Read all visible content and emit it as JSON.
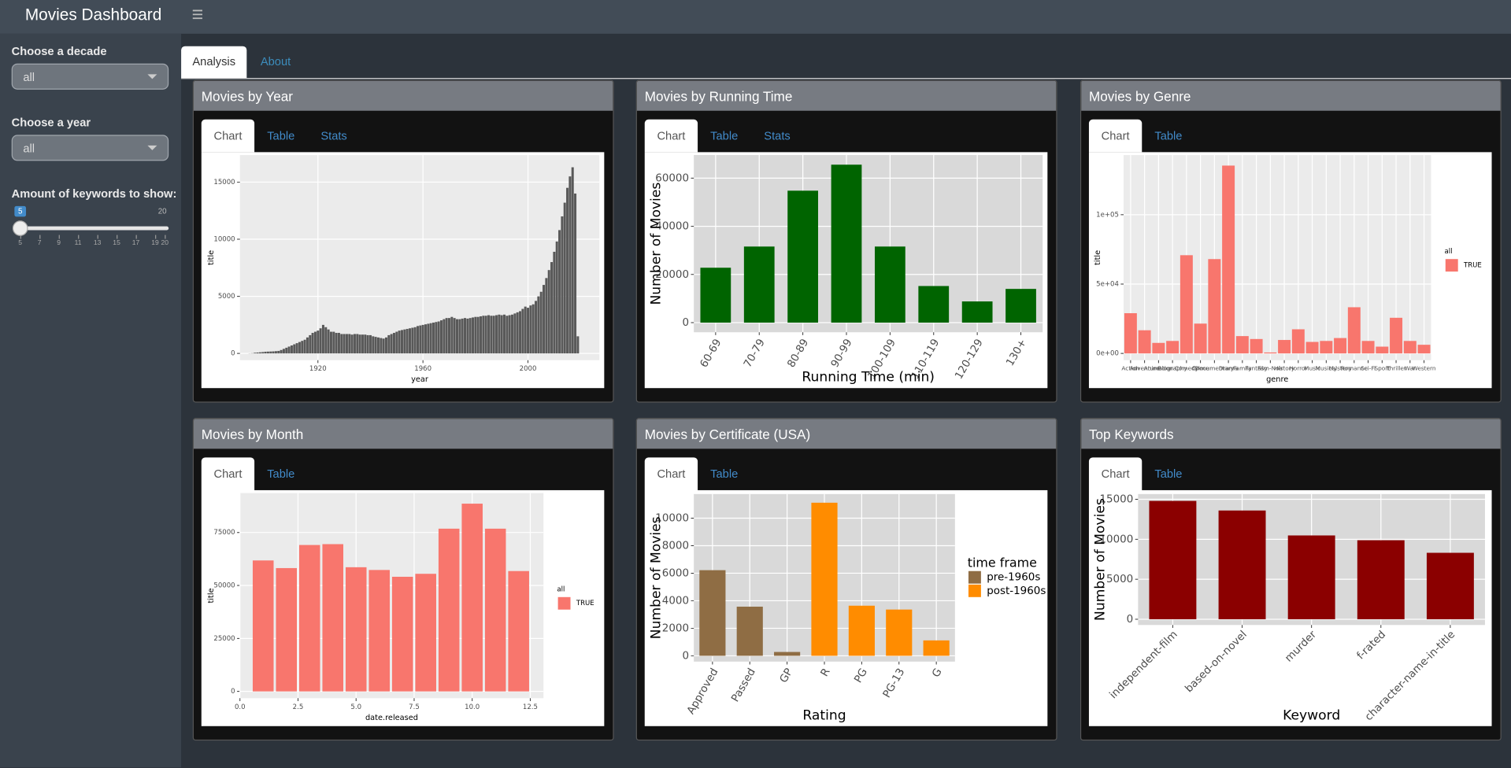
{
  "header": {
    "title": "Movies Dashboard"
  },
  "sidebar": {
    "decade": {
      "label": "Choose a decade",
      "value": "all"
    },
    "year": {
      "label": "Choose a year",
      "value": "all"
    },
    "keywords": {
      "label": "Amount of keywords to show:",
      "min": 5,
      "max": 20,
      "value": 5,
      "ticks": [
        5,
        7,
        9,
        11,
        13,
        15,
        17,
        19,
        20
      ]
    }
  },
  "main_tabs": [
    "Analysis",
    "About"
  ],
  "panels": [
    {
      "title": "Movies by Year",
      "tabs": [
        "Chart",
        "Table",
        "Stats"
      ]
    },
    {
      "title": "Movies by Running Time",
      "tabs": [
        "Chart",
        "Table",
        "Stats"
      ]
    },
    {
      "title": "Movies by Genre",
      "tabs": [
        "Chart",
        "Table"
      ]
    },
    {
      "title": "Movies by Month",
      "tabs": [
        "Chart",
        "Table"
      ]
    },
    {
      "title": "Movies by Certificate (USA)",
      "tabs": [
        "Chart",
        "Table"
      ]
    },
    {
      "title": "Top Keywords",
      "tabs": [
        "Chart",
        "Table"
      ]
    }
  ],
  "chart_data": [
    {
      "type": "bar",
      "xlabel": "year",
      "ylabel": "title",
      "color": "#595959",
      "grid": true,
      "x": [
        1894,
        1895,
        1896,
        1897,
        1898,
        1899,
        1900,
        1901,
        1902,
        1903,
        1904,
        1905,
        1906,
        1907,
        1908,
        1909,
        1910,
        1911,
        1912,
        1913,
        1914,
        1915,
        1916,
        1917,
        1918,
        1919,
        1920,
        1921,
        1922,
        1923,
        1924,
        1925,
        1926,
        1927,
        1928,
        1929,
        1930,
        1931,
        1932,
        1933,
        1934,
        1935,
        1936,
        1937,
        1938,
        1939,
        1940,
        1941,
        1942,
        1943,
        1944,
        1945,
        1946,
        1947,
        1948,
        1949,
        1950,
        1951,
        1952,
        1953,
        1954,
        1955,
        1956,
        1957,
        1958,
        1959,
        1960,
        1961,
        1962,
        1963,
        1964,
        1965,
        1966,
        1967,
        1968,
        1969,
        1970,
        1971,
        1972,
        1973,
        1974,
        1975,
        1976,
        1977,
        1978,
        1979,
        1980,
        1981,
        1982,
        1983,
        1984,
        1985,
        1986,
        1987,
        1988,
        1989,
        1990,
        1991,
        1992,
        1993,
        1994,
        1995,
        1996,
        1997,
        1998,
        1999,
        2000,
        2001,
        2002,
        2003,
        2004,
        2005,
        2006,
        2007,
        2008,
        2009,
        2010,
        2011,
        2012,
        2013,
        2014,
        2015,
        2016,
        2017,
        2018,
        2019
      ],
      "values": [
        10,
        20,
        60,
        80,
        100,
        120,
        150,
        160,
        170,
        180,
        200,
        220,
        300,
        400,
        500,
        600,
        700,
        800,
        900,
        1000,
        1100,
        1200,
        1400,
        1600,
        1800,
        1900,
        2000,
        2200,
        2500,
        2300,
        2100,
        1900,
        1900,
        1800,
        1800,
        1700,
        1700,
        1700,
        1700,
        1650,
        1700,
        1700,
        1650,
        1650,
        1650,
        1600,
        1600,
        1500,
        1450,
        1400,
        1350,
        1300,
        1400,
        1600,
        1700,
        1800,
        1900,
        2000,
        2050,
        2100,
        2150,
        2200,
        2250,
        2300,
        2400,
        2450,
        2500,
        2550,
        2600,
        2650,
        2700,
        2750,
        2800,
        2900,
        3000,
        3100,
        3100,
        3200,
        3100,
        3000,
        3000,
        3050,
        3100,
        3050,
        3100,
        3150,
        3200,
        3200,
        3250,
        3300,
        3300,
        3350,
        3300,
        3300,
        3350,
        3400,
        3350,
        3400,
        3300,
        3350,
        3400,
        3500,
        3600,
        3700,
        3900,
        4100,
        4000,
        4200,
        4300,
        4600,
        5000,
        5400,
        6000,
        6600,
        7300,
        8000,
        8900,
        9800,
        10800,
        12000,
        13200,
        14500,
        15500,
        16300,
        14000,
        1500
      ],
      "xlim": [
        1890.3,
        2027.2
      ],
      "xticks": [
        1920,
        1960,
        2000
      ],
      "ylim": [
        -590,
        17370
      ],
      "yticks": [
        0,
        5000,
        10000,
        15000
      ]
    },
    {
      "type": "bar",
      "xlabel": "Running Time (min)",
      "ylabel": "Number of Movies",
      "color": "#006400",
      "grid": true,
      "categories": [
        "60-69",
        "70-79",
        "80-89",
        "90-99",
        "100-109",
        "110-119",
        "120-129",
        "130+"
      ],
      "values": [
        22800,
        31600,
        54800,
        65600,
        31600,
        15200,
        8800,
        14000
      ],
      "ylim": [
        -4000,
        69600
      ],
      "yticks": [
        0,
        20000,
        40000,
        60000
      ]
    },
    {
      "type": "bar",
      "xlabel": "genre",
      "ylabel": "title",
      "legend_title": "all",
      "grid": true,
      "categories": [
        "Action",
        "Adventure",
        "Animation",
        "Biography",
        "Comedy",
        "Crime",
        "Documentary",
        "Drama",
        "Family",
        "Fantasy",
        "Film-Noir",
        "History",
        "Horror",
        "Music",
        "Musical",
        "Mystery",
        "Romance",
        "Sci-Fi",
        "Sport",
        "Thriller",
        "War",
        "Western"
      ],
      "series": [
        {
          "name": "TRUE",
          "color": "#f8766d",
          "values": [
            29000,
            16700,
            7600,
            9000,
            70800,
            21500,
            68000,
            135400,
            12500,
            10400,
            700,
            9700,
            17400,
            8300,
            9000,
            11100,
            33300,
            9000,
            4900,
            25700,
            9000,
            6250
          ]
        }
      ],
      "ylim": [
        -4860,
        143000
      ],
      "yticks": [
        {
          "value": 0,
          "label": "0e+00"
        },
        {
          "value": 50000,
          "label": "5e+04"
        },
        {
          "value": 100000,
          "label": "1e+05"
        }
      ]
    },
    {
      "type": "bar",
      "xlabel": "date.released",
      "ylabel": "title",
      "legend_title": "all",
      "grid": true,
      "x": [
        1,
        2,
        3,
        4,
        5,
        6,
        7,
        8,
        9,
        10,
        11,
        12
      ],
      "series": [
        {
          "name": "TRUE",
          "color": "#f8766d",
          "values": [
            61800,
            58200,
            69100,
            69500,
            58600,
            57300,
            54100,
            55500,
            76800,
            88600,
            76800,
            56800
          ]
        }
      ],
      "xlim": [
        0,
        13.07
      ],
      "xticks": [
        {
          "value": 0,
          "label": "0.0"
        },
        2.5,
        {
          "value": 5,
          "label": "5.0"
        },
        7.5,
        {
          "value": 10,
          "label": "10.0"
        },
        12.5
      ],
      "ylim": [
        -3200,
        93600
      ],
      "yticks": [
        0,
        25000,
        50000,
        75000
      ]
    },
    {
      "type": "bar",
      "xlabel": "Rating",
      "ylabel": "Number of Movies",
      "legend_title": "time frame",
      "grid": true,
      "categories": [
        "Approved",
        "Passed",
        "GP",
        "R",
        "PG",
        "PG-13",
        "G"
      ],
      "series": [
        {
          "name": "pre-1960s",
          "color": "#8f6d44",
          "values": [
            6220,
            3570,
            280,
            null,
            null,
            null,
            null
          ]
        },
        {
          "name": "post-1960s",
          "color": "#ff8c00",
          "values": [
            null,
            null,
            null,
            11120,
            3640,
            3360,
            1120
          ]
        }
      ],
      "ylim": [
        -420,
        11750
      ],
      "yticks": [
        0,
        2000,
        4000,
        6000,
        8000,
        10000
      ]
    },
    {
      "type": "bar",
      "xlabel": "Keyword",
      "ylabel": "Number of Movies",
      "color": "#8b0000",
      "grid": true,
      "categories": [
        "independent-film",
        "based-on-novel",
        "murder",
        "f-rated",
        "character-name-in-title"
      ],
      "values": [
        14800,
        13600,
        10480,
        9880,
        8310
      ],
      "ylim": [
        -720,
        15660
      ],
      "yticks": [
        0,
        5000,
        10000,
        15000
      ]
    }
  ]
}
